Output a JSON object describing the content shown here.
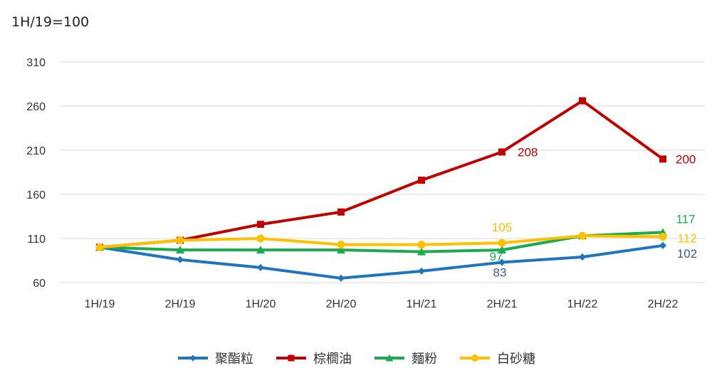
{
  "chart_data": {
    "type": "line",
    "title": "",
    "unit_label": "1H/19=100",
    "categories": [
      "1H/19",
      "2H/19",
      "1H/20",
      "2H/20",
      "1H/21",
      "2H/21",
      "1H/22",
      "2H/22"
    ],
    "y_ticks": [
      "310",
      "260",
      "210",
      "160",
      "110",
      "60"
    ],
    "ylim": [
      60,
      310
    ],
    "grid": true,
    "legend_position": "bottom",
    "series": [
      {
        "name": "聚酯粒",
        "color": "#1f74be",
        "marker": "diamond",
        "values": [
          100,
          86,
          77,
          65,
          73,
          83,
          89,
          102
        ]
      },
      {
        "name": "棕櫚油",
        "color": "#c00000",
        "marker": "square",
        "values": [
          100,
          108,
          126,
          140,
          176,
          208,
          266,
          200
        ]
      },
      {
        "name": "麵粉",
        "color": "#1aab50",
        "marker": "triangle",
        "values": [
          100,
          97,
          97,
          97,
          95,
          97,
          113,
          117
        ]
      },
      {
        "name": "白砂糖",
        "color": "#ffc000",
        "marker": "circle",
        "values": [
          100,
          108,
          110,
          103,
          103,
          105,
          113,
          112
        ]
      }
    ],
    "annotations": [
      {
        "series": 1,
        "index": 5,
        "text": "208"
      },
      {
        "series": 1,
        "index": 7,
        "text": "200"
      },
      {
        "series": 2,
        "index": 5,
        "text": "97"
      },
      {
        "series": 2,
        "index": 7,
        "text": "117"
      },
      {
        "series": 3,
        "index": 5,
        "text": "105"
      },
      {
        "series": 3,
        "index": 7,
        "text": "112"
      },
      {
        "series": 0,
        "index": 5,
        "text": "83"
      },
      {
        "series": 0,
        "index": 7,
        "text": "102"
      }
    ]
  }
}
